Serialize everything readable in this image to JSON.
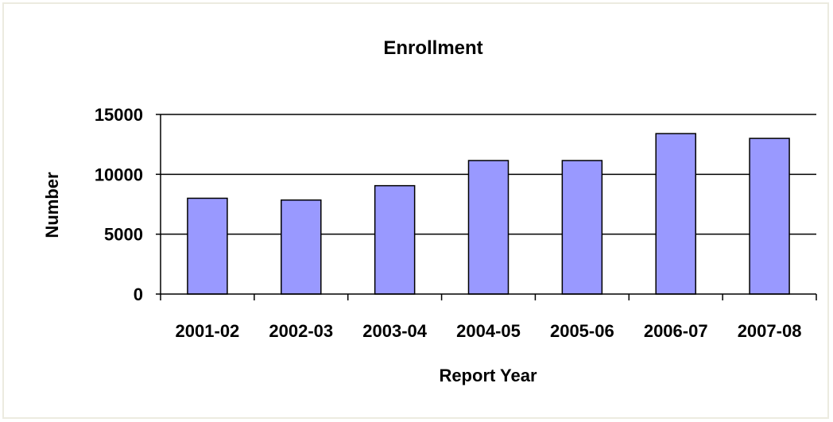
{
  "chart_data": {
    "type": "bar",
    "title": "Enrollment",
    "xlabel": "Report Year",
    "ylabel": "Number",
    "categories": [
      "2001-02",
      "2002-03",
      "2003-04",
      "2004-05",
      "2005-06",
      "2006-07",
      "2007-08"
    ],
    "values": [
      8000,
      7850,
      9050,
      11150,
      11150,
      13400,
      13000
    ],
    "ylim": [
      0,
      15000
    ],
    "yticks": [
      "0",
      "5000",
      "10000",
      "15000"
    ],
    "grid": true,
    "bar_color": "#9999ff",
    "bar_stroke": "#000000"
  }
}
